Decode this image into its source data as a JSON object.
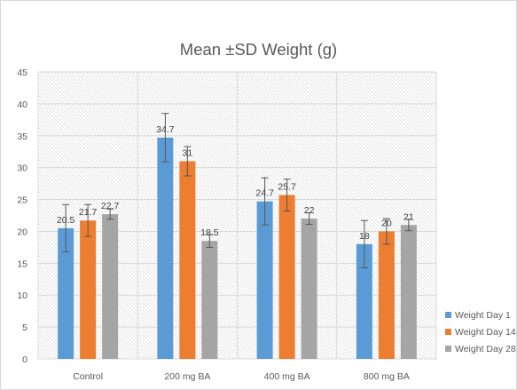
{
  "chart_data": {
    "type": "bar",
    "title": "Mean ±SD Weight (g)",
    "categories": [
      "Control",
      "200 mg BA",
      "400 mg BA",
      "800 mg BA"
    ],
    "series": [
      {
        "name": "Weight Day 1",
        "color": "#5b9bd5",
        "values": [
          20.5,
          34.7,
          24.7,
          18
        ],
        "labels": [
          "20.5",
          "34.7",
          "24.7",
          "18"
        ],
        "errors": [
          3.7,
          3.8,
          3.7,
          3.7
        ]
      },
      {
        "name": "Weight Day 14",
        "color": "#ed7d31",
        "values": [
          21.7,
          31,
          25.7,
          20
        ],
        "labels": [
          "21.7",
          "31",
          "25.7",
          "20"
        ],
        "errors": [
          2.5,
          2.3,
          2.5,
          2.0
        ]
      },
      {
        "name": "Weight Day 28",
        "color": "#a5a5a5",
        "values": [
          22.7,
          18.5,
          22,
          21
        ],
        "labels": [
          "22.7",
          "18.5",
          "22",
          "21"
        ],
        "errors": [
          0.8,
          1.0,
          0.9,
          0.9
        ]
      }
    ],
    "ylim": [
      0,
      45
    ],
    "yticks": [
      0,
      5,
      10,
      15,
      20,
      25,
      30,
      35,
      40,
      45
    ],
    "xlabel": "",
    "ylabel": "",
    "grid": true,
    "legend_position": "right"
  }
}
